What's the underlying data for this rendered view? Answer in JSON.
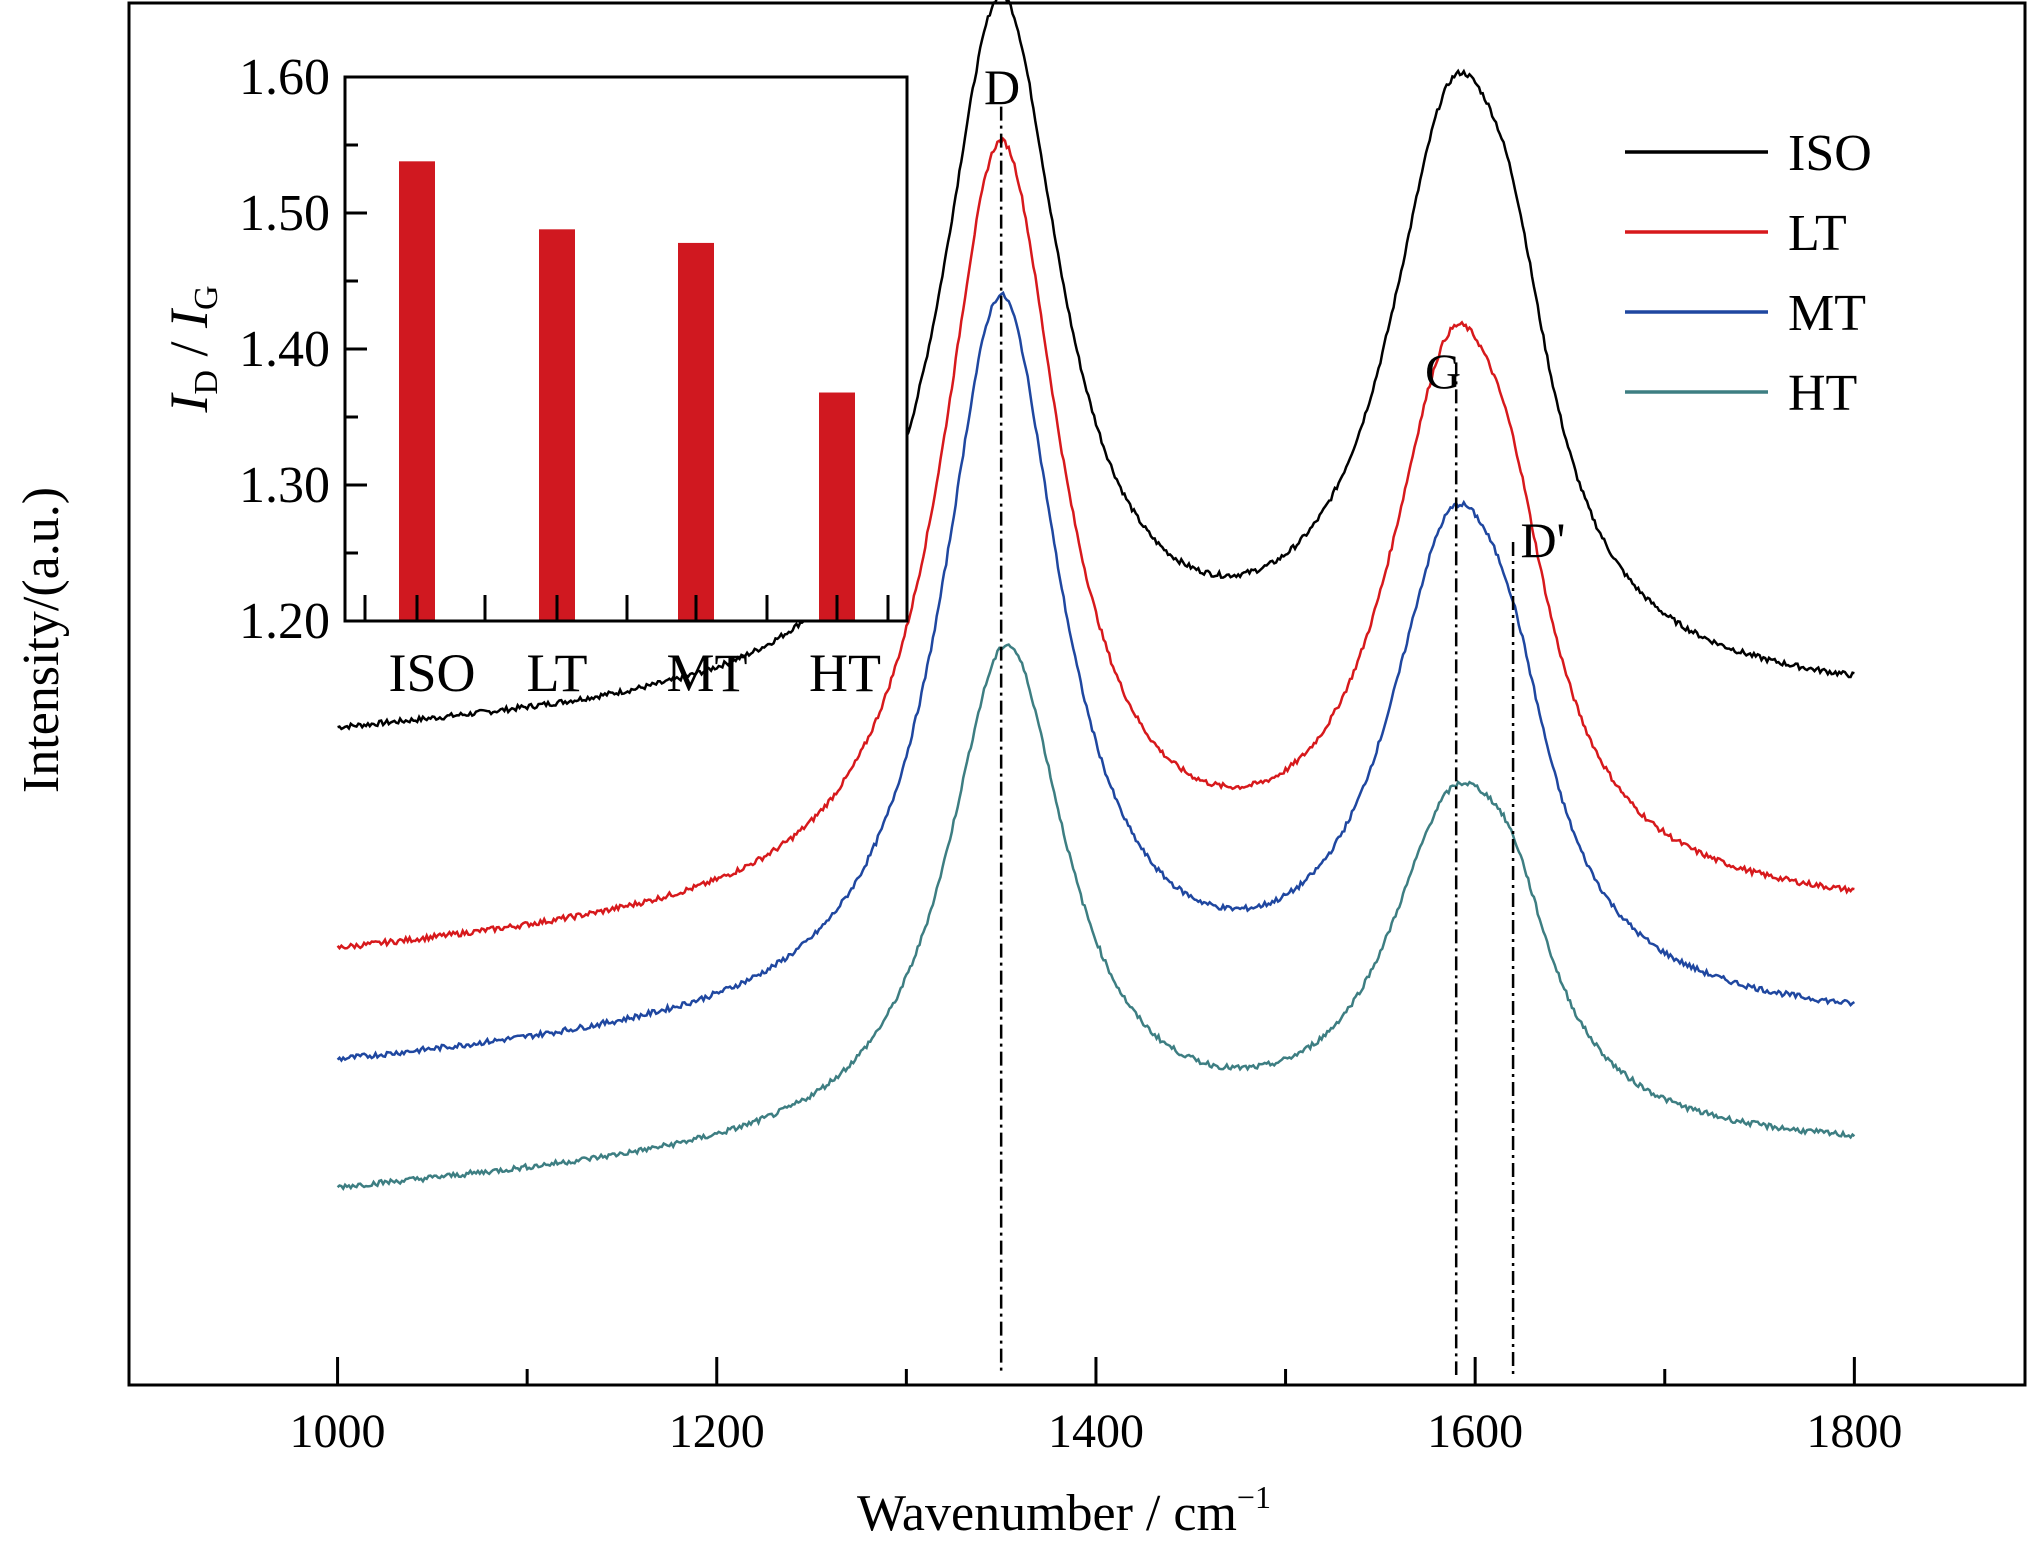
{
  "chart_data": [
    {
      "type": "line",
      "xlabel": "Wavenumber / cm",
      "xlabel_sup": "−1",
      "ylabel": "Intensity/(a.u.)",
      "xlim": [
        890,
        1890
      ],
      "xticks": [
        1000,
        1200,
        1400,
        1600,
        1800
      ],
      "xtick_labels": [
        "1000",
        "1200",
        "1400",
        "1600",
        "1800"
      ],
      "y_ticks_shown": false,
      "legend_position": "top-right",
      "series": [
        {
          "name": "ISO",
          "color": "#000000",
          "offset": 0.0,
          "d_amp": 0.5,
          "g_amp": 0.395,
          "dp_amp": 0.12,
          "base_start": 0.062,
          "base_end": 0.072
        },
        {
          "name": "LT",
          "color": "#d7191c",
          "offset": -0.16,
          "d_amp": 0.55,
          "g_amp": 0.375,
          "dp_amp": 0.1,
          "base_start": 0.075,
          "base_end": 0.072
        },
        {
          "name": "MT",
          "color": "#1f47a0",
          "offset": -0.24,
          "d_amp": 0.52,
          "g_amp": 0.33,
          "dp_amp": 0.09,
          "base_start": 0.075,
          "base_end": 0.072
        },
        {
          "name": "HT",
          "color": "#3d7e82",
          "offset": -0.33,
          "d_amp": 0.36,
          "g_amp": 0.225,
          "dp_amp": 0.08,
          "base_start": 0.075,
          "base_end": 0.072
        }
      ],
      "peaks": {
        "D": 1350,
        "G": 1590,
        "D'": 1620
      },
      "peak_labels": [
        "D",
        "G",
        "D'"
      ]
    },
    {
      "type": "bar",
      "inset": true,
      "ylabel": "I_D / I_G",
      "ylabel_I": "I",
      "ylabel_sub_D": "D",
      "ylabel_slash": " / ",
      "ylabel_sub_G": "G",
      "categories": [
        "ISO",
        "LT",
        "MT",
        "HT"
      ],
      "values": [
        1.538,
        1.488,
        1.478,
        1.368
      ],
      "ylim": [
        1.2,
        1.6
      ],
      "yticks": [
        1.2,
        1.3,
        1.4,
        1.5,
        1.6
      ],
      "ytick_labels": [
        "1.20",
        "1.30",
        "1.40",
        "1.50",
        "1.60"
      ],
      "bar_color": "#d01820"
    }
  ]
}
